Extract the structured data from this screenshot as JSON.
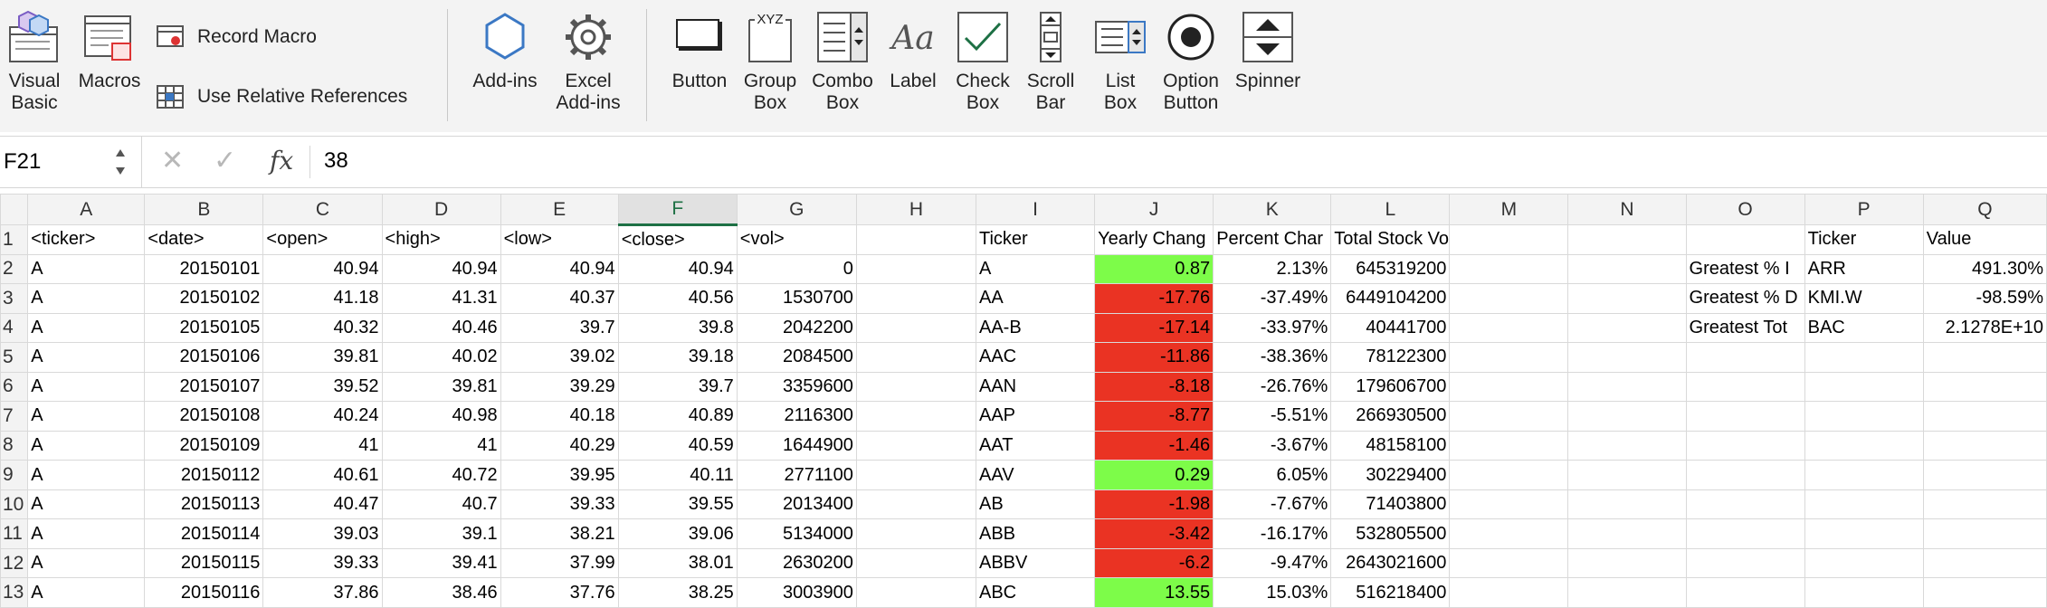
{
  "ribbon": {
    "visual_basic": "Visual\nBasic",
    "macros": "Macros",
    "record_macro": "Record Macro",
    "use_relative": "Use Relative References",
    "addins": "Add-ins",
    "excel_addins": "Excel\nAdd-ins",
    "button": "Button",
    "group_box": "Group\nBox",
    "combo_box": "Combo\nBox",
    "label": "Label",
    "check_box": "Check\nBox",
    "scroll_bar": "Scroll\nBar",
    "list_box": "List\nBox",
    "option_button": "Option\nButton",
    "spinner": "Spinner",
    "group_box_icon_text": "XYZ",
    "label_icon_text": "Aa"
  },
  "formula_bar": {
    "name_box": "F21",
    "fx": "fx",
    "value": "38"
  },
  "colors": {
    "positive": "#7dfc49",
    "negative": "#ea3323",
    "selected_header": "#1d7044"
  },
  "columns": [
    "A",
    "B",
    "C",
    "D",
    "E",
    "F",
    "G",
    "H",
    "I",
    "J",
    "K",
    "L",
    "M",
    "N",
    "O",
    "P",
    "Q"
  ],
  "rows": [
    {
      "n": "1",
      "a": "<ticker>",
      "b": "<date>",
      "c": "<open>",
      "d": "<high>",
      "e": "<low>",
      "f": "<close>",
      "g": "<vol>",
      "h": "",
      "i": "Ticker",
      "j": "Yearly Chang",
      "k": "Percent Char",
      "l": "Total Stock Volume",
      "m": "",
      "nn": "",
      "o": "",
      "p": "Ticker",
      "q": "Value"
    },
    {
      "n": "2",
      "a": "A",
      "b": "20150101",
      "c": "40.94",
      "d": "40.94",
      "e": "40.94",
      "f": "40.94",
      "g": "0",
      "h": "",
      "i": "A",
      "j": "0.87",
      "k": "2.13%",
      "l": "645319200",
      "m": "",
      "nn": "",
      "o": "Greatest % I",
      "p": "ARR",
      "q": "491.30%"
    },
    {
      "n": "3",
      "a": "A",
      "b": "20150102",
      "c": "41.18",
      "d": "41.31",
      "e": "40.37",
      "f": "40.56",
      "g": "1530700",
      "h": "",
      "i": "AA",
      "j": "-17.76",
      "k": "-37.49%",
      "l": "6449104200",
      "m": "",
      "nn": "",
      "o": "Greatest % D",
      "p": "KMI.W",
      "q": "-98.59%"
    },
    {
      "n": "4",
      "a": "A",
      "b": "20150105",
      "c": "40.32",
      "d": "40.46",
      "e": "39.7",
      "f": "39.8",
      "g": "2042200",
      "h": "",
      "i": "AA-B",
      "j": "-17.14",
      "k": "-33.97%",
      "l": "40441700",
      "m": "",
      "nn": "",
      "o": "Greatest Tot",
      "p": "BAC",
      "q": "2.1278E+10"
    },
    {
      "n": "5",
      "a": "A",
      "b": "20150106",
      "c": "39.81",
      "d": "40.02",
      "e": "39.02",
      "f": "39.18",
      "g": "2084500",
      "h": "",
      "i": "AAC",
      "j": "-11.86",
      "k": "-38.36%",
      "l": "78122300",
      "m": "",
      "nn": "",
      "o": "",
      "p": "",
      "q": ""
    },
    {
      "n": "6",
      "a": "A",
      "b": "20150107",
      "c": "39.52",
      "d": "39.81",
      "e": "39.29",
      "f": "39.7",
      "g": "3359600",
      "h": "",
      "i": "AAN",
      "j": "-8.18",
      "k": "-26.76%",
      "l": "179606700",
      "m": "",
      "nn": "",
      "o": "",
      "p": "",
      "q": ""
    },
    {
      "n": "7",
      "a": "A",
      "b": "20150108",
      "c": "40.24",
      "d": "40.98",
      "e": "40.18",
      "f": "40.89",
      "g": "2116300",
      "h": "",
      "i": "AAP",
      "j": "-8.77",
      "k": "-5.51%",
      "l": "266930500",
      "m": "",
      "nn": "",
      "o": "",
      "p": "",
      "q": ""
    },
    {
      "n": "8",
      "a": "A",
      "b": "20150109",
      "c": "41",
      "d": "41",
      "e": "40.29",
      "f": "40.59",
      "g": "1644900",
      "h": "",
      "i": "AAT",
      "j": "-1.46",
      "k": "-3.67%",
      "l": "48158100",
      "m": "",
      "nn": "",
      "o": "",
      "p": "",
      "q": ""
    },
    {
      "n": "9",
      "a": "A",
      "b": "20150112",
      "c": "40.61",
      "d": "40.72",
      "e": "39.95",
      "f": "40.11",
      "g": "2771100",
      "h": "",
      "i": "AAV",
      "j": "0.29",
      "k": "6.05%",
      "l": "30229400",
      "m": "",
      "nn": "",
      "o": "",
      "p": "",
      "q": ""
    },
    {
      "n": "10",
      "a": "A",
      "b": "20150113",
      "c": "40.47",
      "d": "40.7",
      "e": "39.33",
      "f": "39.55",
      "g": "2013400",
      "h": "",
      "i": "AB",
      "j": "-1.98",
      "k": "-7.67%",
      "l": "71403800",
      "m": "",
      "nn": "",
      "o": "",
      "p": "",
      "q": ""
    },
    {
      "n": "11",
      "a": "A",
      "b": "20150114",
      "c": "39.03",
      "d": "39.1",
      "e": "38.21",
      "f": "39.06",
      "g": "5134000",
      "h": "",
      "i": "ABB",
      "j": "-3.42",
      "k": "-16.17%",
      "l": "532805500",
      "m": "",
      "nn": "",
      "o": "",
      "p": "",
      "q": ""
    },
    {
      "n": "12",
      "a": "A",
      "b": "20150115",
      "c": "39.33",
      "d": "39.41",
      "e": "37.99",
      "f": "38.01",
      "g": "2630200",
      "h": "",
      "i": "ABBV",
      "j": "-6.2",
      "k": "-9.47%",
      "l": "2643021600",
      "m": "",
      "nn": "",
      "o": "",
      "p": "",
      "q": ""
    },
    {
      "n": "13",
      "a": "A",
      "b": "20150116",
      "c": "37.86",
      "d": "38.46",
      "e": "37.76",
      "f": "38.25",
      "g": "3003900",
      "h": "",
      "i": "ABC",
      "j": "13.55",
      "k": "15.03%",
      "l": "516218400",
      "m": "",
      "nn": "",
      "o": "",
      "p": "",
      "q": ""
    }
  ]
}
